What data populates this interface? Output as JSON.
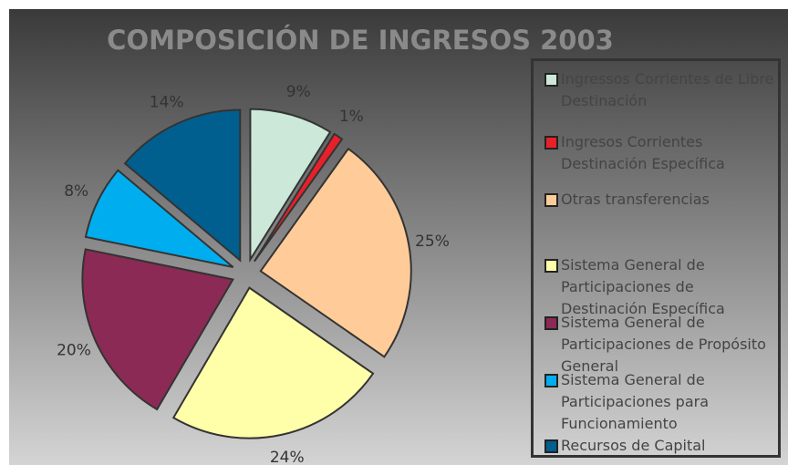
{
  "chart_data": {
    "type": "pie",
    "title": "COMPOSICIÓN DE INGRESOS 2003",
    "categories": [
      "Ingressos Corrientes de Libre Destinación",
      "Ingresos Corrientes Destinación Específica",
      "Otras transferencias",
      "Sistema General de Participaciones de Destinación Específica",
      "Sistema General de Participaciones de Propósito General",
      "Sistema General de Participaciones para Funcionamiento",
      "Recursos de Capital"
    ],
    "values": [
      9,
      1,
      25,
      24,
      20,
      8,
      14
    ],
    "value_labels": [
      "9%",
      "1%",
      "25%",
      "24%",
      "20%",
      "8%",
      "14%"
    ],
    "colors": [
      "#cce8d8",
      "#e8202a",
      "#ffcc99",
      "#ffffaa",
      "#8b2a55",
      "#00aeef",
      "#005f8f"
    ],
    "legend": "right"
  }
}
